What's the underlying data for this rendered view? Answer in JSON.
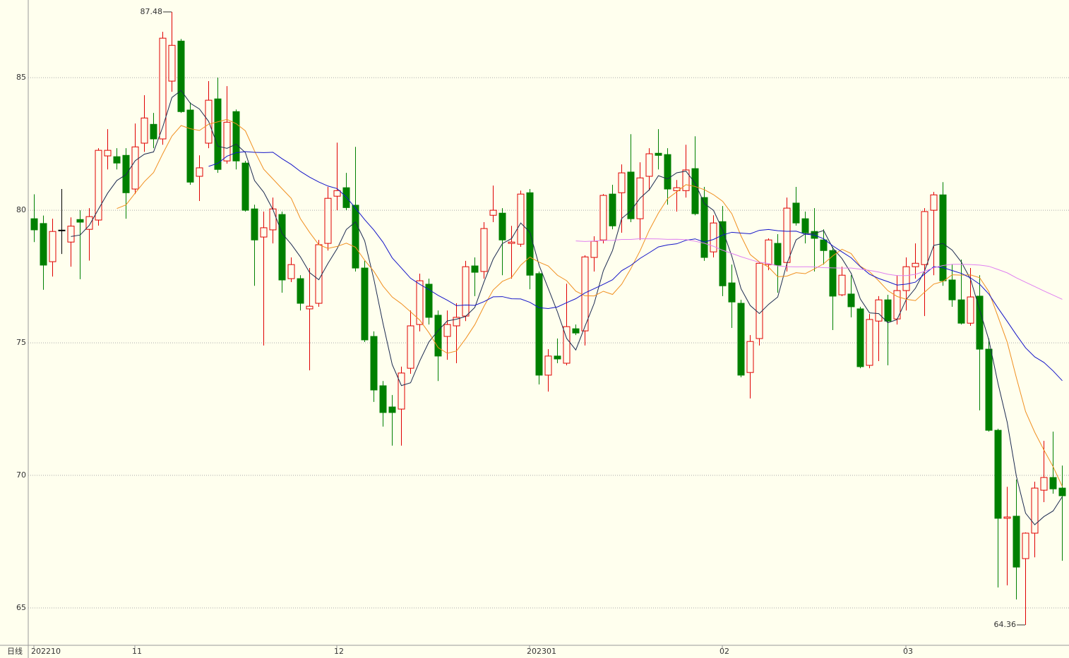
{
  "chart_data": {
    "type": "candlestick",
    "period_label": "日线",
    "categories": [
      "202210",
      null,
      null,
      null,
      null,
      null,
      null,
      null,
      null,
      null,
      null,
      "11",
      null,
      null,
      null,
      null,
      null,
      null,
      null,
      null,
      null,
      null,
      null,
      null,
      null,
      null,
      null,
      null,
      null,
      null,
      null,
      null,
      null,
      "12",
      null,
      null,
      null,
      null,
      null,
      null,
      null,
      null,
      null,
      null,
      null,
      null,
      null,
      null,
      null,
      null,
      null,
      null,
      null,
      null,
      "202301",
      null,
      null,
      null,
      null,
      null,
      null,
      null,
      null,
      null,
      null,
      null,
      null,
      null,
      null,
      null,
      null,
      null,
      null,
      null,
      null,
      "02",
      null,
      null,
      null,
      null,
      null,
      null,
      null,
      null,
      null,
      null,
      null,
      null,
      null,
      null,
      null,
      null,
      null,
      null,
      null,
      "03",
      null,
      null,
      null,
      null,
      null,
      null,
      null,
      null,
      null,
      null,
      null,
      null,
      null,
      null,
      null,
      null,
      null
    ],
    "open": [
      79.68,
      79.5,
      78.06,
      79.25,
      78.8,
      79.65,
      79.28,
      79.63,
      82.05,
      82.02,
      82.07,
      80.8,
      82.53,
      83.24,
      82.69,
      84.87,
      86.38,
      83.78,
      81.28,
      82.53,
      84.2,
      81.86,
      83.72,
      81.78,
      80.05,
      78.99,
      79.26,
      79.84,
      77.42,
      77.42,
      76.28,
      76.49,
      78.75,
      80.53,
      80.85,
      80.19,
      77.82,
      75.24,
      73.38,
      72.58,
      72.5,
      74.04,
      75.69,
      77.21,
      76.04,
      75.24,
      75.64,
      76.01,
      77.9,
      77.69,
      79.81,
      79.89,
      78.75,
      78.72,
      80.66,
      77.61,
      73.78,
      74.5,
      74.23,
      75.53,
      75.45,
      78.22,
      78.88,
      80.61,
      80.66,
      81.44,
      79.68,
      81.28,
      82.15,
      82.1,
      80.74,
      80.74,
      81.57,
      80.48,
      78.43,
      79.57,
      77.26,
      76.49,
      73.88,
      75.16,
      77.95,
      78.75,
      78.03,
      80.27,
      79.68,
      79.2,
      78.88,
      78.48,
      76.81,
      76.84,
      76.28,
      74.15,
      75.82,
      76.62,
      75.9,
      76.97,
      77.87,
      77.95,
      80.0,
      80.58,
      77.37,
      76.62,
      75.74,
      76.76,
      74.76,
      71.7,
      68.38,
      68.46,
      66.86,
      67.82,
      69.44,
      69.92,
      69.52
    ],
    "high": [
      80.6,
      79.8,
      79.68,
      80.8,
      79.73,
      80.0,
      80.08,
      82.34,
      83.06,
      82.34,
      82.34,
      83.27,
      84.34,
      83.67,
      86.73,
      87.48,
      86.46,
      84.07,
      82.07,
      84.87,
      85.0,
      84.68,
      83.8,
      81.86,
      80.21,
      79.95,
      80.48,
      79.95,
      78.22,
      77.55,
      77.82,
      78.88,
      80.88,
      82.55,
      81.41,
      82.39,
      78.09,
      75.43,
      73.56,
      73.03,
      74.1,
      76.22,
      77.61,
      77.42,
      76.22,
      76.22,
      76.49,
      78.09,
      78.22,
      79.55,
      80.93,
      80.08,
      79.41,
      80.74,
      80.8,
      77.69,
      74.76,
      75.16,
      77.23,
      75.69,
      78.3,
      79.02,
      80.61,
      80.96,
      81.73,
      82.87,
      81.81,
      82.34,
      83.06,
      82.34,
      81.14,
      82.47,
      82.79,
      80.88,
      79.81,
      80.16,
      77.95,
      76.62,
      75.29,
      78.03,
      78.94,
      79.1,
      80.48,
      80.88,
      79.95,
      80.08,
      79.28,
      78.62,
      77.87,
      77.55,
      76.36,
      76.09,
      76.76,
      76.81,
      77.55,
      78.22,
      78.75,
      80.08,
      80.69,
      81.06,
      77.95,
      78.14,
      77.82,
      77.55,
      75.16,
      71.76,
      69.57,
      69.84,
      67.85,
      69.76,
      71.3,
      71.65,
      70.37
    ],
    "low": [
      78.8,
      77.0,
      77.5,
      78.35,
      77.87,
      77.4,
      78.1,
      79.42,
      81.54,
      81.54,
      79.68,
      80.61,
      82.2,
      82.34,
      82.47,
      84.47,
      83.67,
      80.96,
      80.35,
      82.34,
      81.41,
      81.76,
      81.54,
      79.95,
      77.15,
      74.9,
      78.75,
      76.89,
      77.29,
      76.22,
      73.96,
      76.36,
      78.48,
      80.0,
      80.0,
      77.69,
      75.03,
      72.77,
      71.84,
      71.12,
      71.12,
      73.83,
      75.43,
      75.69,
      73.56,
      74.36,
      74.23,
      75.82,
      76.76,
      77.42,
      79.55,
      77.55,
      77.42,
      78.62,
      77.02,
      73.43,
      73.16,
      74.23,
      74.15,
      75.29,
      74.9,
      77.69,
      78.75,
      79.28,
      79.15,
      79.55,
      78.88,
      80.74,
      81.54,
      80.21,
      79.95,
      80.48,
      79.81,
      78.09,
      78.22,
      76.76,
      75.56,
      73.7,
      72.9,
      74.9,
      77.74,
      76.89,
      77.69,
      79.42,
      78.75,
      77.69,
      77.95,
      75.48,
      76.76,
      75.96,
      74.04,
      74.04,
      74.31,
      74.15,
      75.69,
      76.22,
      77.42,
      76.01,
      77.55,
      77.15,
      76.36,
      75.69,
      75.64,
      72.45,
      71.65,
      65.77,
      65.85,
      65.32,
      64.36,
      66.91,
      68.99,
      69.31,
      66.78
    ],
    "close": [
      79.26,
      77.93,
      79.2,
      79.25,
      79.4,
      79.55,
      79.76,
      82.26,
      82.26,
      81.78,
      80.66,
      82.39,
      83.48,
      82.69,
      86.49,
      86.22,
      83.72,
      81.06,
      81.6,
      84.15,
      81.54,
      83.32,
      81.86,
      80.0,
      78.88,
      79.34,
      80.05,
      77.37,
      77.95,
      76.49,
      76.38,
      78.7,
      80.45,
      80.74,
      80.1,
      77.82,
      75.11,
      73.22,
      72.37,
      72.37,
      73.86,
      75.64,
      77.34,
      75.96,
      74.5,
      75.69,
      75.96,
      77.87,
      77.66,
      79.31,
      80.0,
      78.88,
      78.8,
      80.61,
      77.55,
      73.78,
      74.5,
      74.39,
      75.61,
      75.37,
      78.24,
      78.83,
      80.56,
      79.41,
      81.41,
      79.68,
      81.22,
      82.13,
      82.07,
      80.8,
      80.85,
      81.52,
      79.87,
      78.22,
      79.52,
      77.15,
      76.54,
      73.78,
      75.05,
      78.0,
      78.88,
      77.93,
      80.08,
      79.52,
      79.15,
      78.94,
      78.48,
      76.76,
      77.55,
      76.36,
      74.1,
      75.88,
      76.62,
      75.82,
      76.97,
      77.87,
      78.0,
      79.95,
      80.58,
      77.34,
      76.62,
      75.74,
      76.73,
      74.76,
      71.7,
      68.38,
      68.43,
      66.54,
      67.82,
      69.52,
      69.92,
      69.49,
      69.23
    ],
    "up_color": "#e00000",
    "down_color": "#008000",
    "flat_color": "#000000",
    "moving_averages": [
      {
        "period": 5,
        "color": "#1c2a50"
      },
      {
        "period": 10,
        "color": "#f09020"
      },
      {
        "period": 20,
        "color": "#1414c8"
      },
      {
        "period": 60,
        "color": "#e080f0"
      }
    ],
    "ylim": [
      63.59,
      87.93
    ],
    "yticks": [
      65,
      70,
      75,
      80,
      85
    ],
    "grid": true,
    "annotations": [
      {
        "index": 15,
        "field": "high"
      },
      {
        "index": 108,
        "field": "low"
      }
    ]
  }
}
